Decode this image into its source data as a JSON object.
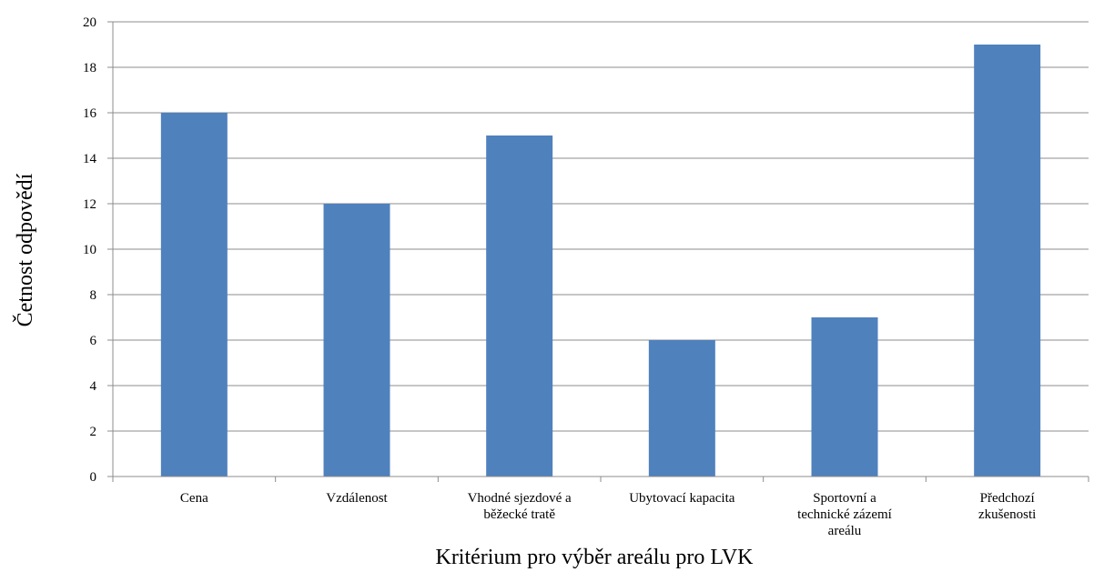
{
  "chart_data": {
    "type": "bar",
    "title": "",
    "xlabel": "Kritérium pro výběr areálu pro LVK",
    "ylabel": "Četnost odpovědí",
    "categories": [
      [
        "Cena"
      ],
      [
        "Vzdálenost"
      ],
      [
        "Vhodné sjezdové a",
        "běžecké tratě"
      ],
      [
        "Ubytovací kapacita"
      ],
      [
        "Sportovní a",
        "technické zázemí",
        "areálu"
      ],
      [
        "Předchozí",
        "zkušenosti"
      ]
    ],
    "series": [
      {
        "values": [
          16,
          12,
          15,
          6,
          7,
          19
        ]
      }
    ],
    "ylim": [
      0,
      20
    ],
    "yticks": [
      0,
      2,
      4,
      6,
      8,
      10,
      12,
      14,
      16,
      18,
      20
    ],
    "grid": true,
    "legend": "none",
    "colors": {
      "bar": "#4f81bd",
      "grid": "#8c8c8c",
      "axis": "#8c8c8c"
    }
  }
}
